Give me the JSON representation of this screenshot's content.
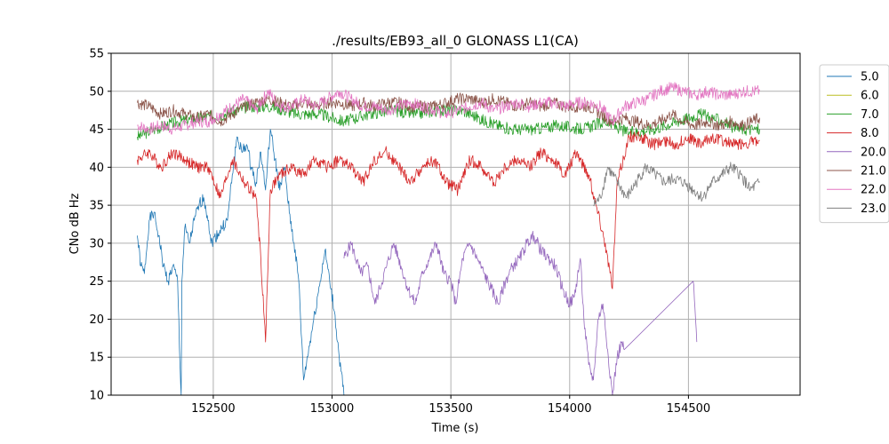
{
  "chart_data": {
    "type": "line",
    "title": "./results/EB93_all_0 GLONASS L1(CA)",
    "xlabel": "Time (s)",
    "ylabel": "CNo dB Hz",
    "xlim": [
      152070,
      154970
    ],
    "ylim": [
      10,
      55
    ],
    "xticks": [
      152500,
      153000,
      153500,
      154000,
      154500
    ],
    "yticks": [
      10,
      15,
      20,
      25,
      30,
      35,
      40,
      45,
      50,
      55
    ],
    "grid": true,
    "legend_position": "outside-right",
    "series": [
      {
        "name": "5.0",
        "color": "#1f77b4",
        "points": [
          [
            152180,
            31
          ],
          [
            152195,
            27
          ],
          [
            152210,
            26
          ],
          [
            152230,
            33
          ],
          [
            152250,
            34
          ],
          [
            152270,
            31
          ],
          [
            152290,
            27
          ],
          [
            152310,
            25
          ],
          [
            152330,
            27
          ],
          [
            152350,
            25
          ],
          [
            152360,
            14
          ],
          [
            152365,
            10
          ],
          [
            152368,
            25
          ],
          [
            152380,
            32
          ],
          [
            152400,
            30
          ],
          [
            152420,
            33
          ],
          [
            152440,
            35
          ],
          [
            152460,
            36
          ],
          [
            152480,
            33
          ],
          [
            152490,
            30
          ],
          [
            152560,
            33
          ],
          [
            152580,
            39
          ],
          [
            152600,
            44
          ],
          [
            152620,
            42
          ],
          [
            152640,
            43
          ],
          [
            152660,
            40
          ],
          [
            152680,
            38
          ],
          [
            152700,
            42
          ],
          [
            152720,
            37
          ],
          [
            152740,
            45
          ],
          [
            152760,
            41
          ],
          [
            152780,
            37
          ],
          [
            152800,
            40
          ],
          [
            152820,
            34
          ],
          [
            152840,
            30
          ],
          [
            152860,
            25
          ],
          [
            152880,
            12
          ],
          [
            152950,
            25
          ],
          [
            152970,
            29
          ],
          [
            152990,
            25
          ],
          [
            153010,
            21
          ],
          [
            153030,
            15
          ],
          [
            153050,
            10
          ]
        ]
      },
      {
        "name": "6.0",
        "color": "#bcbd22",
        "points": []
      },
      {
        "name": "7.0",
        "color": "#2ca02c",
        "points": [
          [
            152180,
            44
          ],
          [
            152250,
            45
          ],
          [
            152350,
            46
          ],
          [
            152450,
            46.5
          ],
          [
            152550,
            47
          ],
          [
            152650,
            48
          ],
          [
            152750,
            48
          ],
          [
            152850,
            47
          ],
          [
            152950,
            47
          ],
          [
            153050,
            46
          ],
          [
            153150,
            47
          ],
          [
            153250,
            47.5
          ],
          [
            153350,
            47
          ],
          [
            153450,
            47.5
          ],
          [
            153550,
            47.5
          ],
          [
            153650,
            46
          ],
          [
            153750,
            45
          ],
          [
            153850,
            45
          ],
          [
            153950,
            45.5
          ],
          [
            154050,
            45
          ],
          [
            154150,
            46
          ],
          [
            154250,
            44.5
          ],
          [
            154350,
            45
          ],
          [
            154450,
            46
          ],
          [
            154550,
            47
          ],
          [
            154650,
            46
          ],
          [
            154700,
            45
          ],
          [
            154800,
            45
          ]
        ]
      },
      {
        "name": "8.0",
        "color": "#d62728",
        "points": [
          [
            152180,
            41
          ],
          [
            152230,
            42
          ],
          [
            152280,
            40
          ],
          [
            152330,
            42
          ],
          [
            152380,
            41
          ],
          [
            152430,
            40
          ],
          [
            152480,
            40
          ],
          [
            152530,
            36
          ],
          [
            152580,
            41
          ],
          [
            152630,
            38
          ],
          [
            152680,
            36
          ],
          [
            152700,
            28
          ],
          [
            152720,
            17
          ],
          [
            152740,
            37
          ],
          [
            152780,
            39
          ],
          [
            152830,
            40
          ],
          [
            152880,
            39
          ],
          [
            152930,
            41
          ],
          [
            152980,
            40
          ],
          [
            153030,
            41
          ],
          [
            153080,
            40
          ],
          [
            153130,
            38
          ],
          [
            153180,
            41
          ],
          [
            153230,
            42
          ],
          [
            153280,
            40
          ],
          [
            153330,
            38
          ],
          [
            153380,
            40
          ],
          [
            153430,
            41
          ],
          [
            153480,
            38
          ],
          [
            153530,
            37
          ],
          [
            153580,
            41
          ],
          [
            153630,
            40
          ],
          [
            153680,
            38
          ],
          [
            153730,
            40
          ],
          [
            153780,
            41
          ],
          [
            153830,
            40
          ],
          [
            153880,
            42
          ],
          [
            153930,
            41
          ],
          [
            153980,
            39
          ],
          [
            154030,
            42
          ],
          [
            154080,
            39
          ],
          [
            154120,
            34
          ],
          [
            154150,
            30
          ],
          [
            154180,
            24
          ],
          [
            154200,
            38
          ],
          [
            154250,
            44
          ],
          [
            154300,
            44
          ],
          [
            154350,
            43
          ],
          [
            154400,
            43.5
          ],
          [
            154450,
            43
          ],
          [
            154500,
            44
          ],
          [
            154550,
            43
          ],
          [
            154600,
            44
          ],
          [
            154650,
            43.5
          ],
          [
            154700,
            43
          ],
          [
            154800,
            43.5
          ]
        ]
      },
      {
        "name": "20.0",
        "color": "#9467bd",
        "points": [
          [
            153050,
            28
          ],
          [
            153080,
            30
          ],
          [
            153120,
            26
          ],
          [
            153150,
            27
          ],
          [
            153180,
            22
          ],
          [
            153200,
            24
          ],
          [
            153230,
            27
          ],
          [
            153260,
            30
          ],
          [
            153290,
            27
          ],
          [
            153320,
            24
          ],
          [
            153350,
            22
          ],
          [
            153380,
            26
          ],
          [
            153410,
            28
          ],
          [
            153440,
            30
          ],
          [
            153470,
            26
          ],
          [
            153500,
            25
          ],
          [
            153520,
            22
          ],
          [
            153550,
            28
          ],
          [
            153580,
            30
          ],
          [
            153610,
            28
          ],
          [
            153640,
            26
          ],
          [
            153670,
            24
          ],
          [
            153700,
            22
          ],
          [
            153730,
            25
          ],
          [
            153760,
            27
          ],
          [
            153790,
            28
          ],
          [
            153820,
            30
          ],
          [
            153850,
            31
          ],
          [
            153880,
            29
          ],
          [
            153910,
            28
          ],
          [
            153940,
            27
          ],
          [
            153970,
            24
          ],
          [
            154000,
            22
          ],
          [
            154020,
            23
          ],
          [
            154045,
            28
          ],
          [
            154060,
            20
          ],
          [
            154080,
            14
          ],
          [
            154100,
            12
          ],
          [
            154120,
            20
          ],
          [
            154140,
            22
          ],
          [
            154160,
            16
          ],
          [
            154180,
            10
          ],
          [
            154200,
            15
          ],
          [
            154220,
            17
          ],
          [
            154230,
            16
          ],
          [
            154520,
            25
          ],
          [
            154530,
            20
          ],
          [
            154535,
            17
          ]
        ]
      },
      {
        "name": "21.0",
        "color": "#8c564b",
        "points": [
          [
            152180,
            48.5
          ],
          [
            152230,
            48
          ],
          [
            152280,
            47
          ],
          [
            152330,
            47.5
          ],
          [
            152380,
            47
          ],
          [
            152430,
            46.5
          ],
          [
            152480,
            47
          ],
          [
            152530,
            46
          ],
          [
            152580,
            47
          ],
          [
            152630,
            48
          ],
          [
            152680,
            48.5
          ],
          [
            152730,
            49
          ],
          [
            152780,
            48.5
          ],
          [
            152830,
            48
          ],
          [
            152880,
            48.5
          ],
          [
            152930,
            48
          ],
          [
            152980,
            48.5
          ],
          [
            153030,
            48.5
          ],
          [
            153080,
            48
          ],
          [
            153130,
            48.5
          ],
          [
            153180,
            48
          ],
          [
            153230,
            48.5
          ],
          [
            153280,
            48.5
          ],
          [
            153330,
            48
          ],
          [
            153380,
            48
          ],
          [
            153430,
            48
          ],
          [
            153480,
            48.5
          ],
          [
            153530,
            49
          ],
          [
            153580,
            49
          ],
          [
            153630,
            48.5
          ],
          [
            153680,
            49
          ],
          [
            153730,
            48.5
          ],
          [
            153780,
            48
          ],
          [
            153830,
            48.5
          ],
          [
            153880,
            48
          ],
          [
            153930,
            48.5
          ],
          [
            153980,
            48
          ],
          [
            154030,
            48
          ],
          [
            154080,
            48
          ],
          [
            154130,
            47
          ],
          [
            154180,
            46
          ],
          [
            154230,
            46.5
          ],
          [
            154280,
            46
          ],
          [
            154330,
            45.5
          ],
          [
            154380,
            46
          ],
          [
            154430,
            47
          ],
          [
            154480,
            46
          ],
          [
            154530,
            45.5
          ],
          [
            154580,
            46
          ],
          [
            154630,
            45.5
          ],
          [
            154680,
            46
          ],
          [
            154730,
            45.5
          ],
          [
            154800,
            46.5
          ]
        ]
      },
      {
        "name": "22.0",
        "color": "#e377c2",
        "points": [
          [
            152180,
            45.5
          ],
          [
            152230,
            45
          ],
          [
            152280,
            45.5
          ],
          [
            152330,
            45
          ],
          [
            152380,
            45.5
          ],
          [
            152430,
            46
          ],
          [
            152480,
            46
          ],
          [
            152530,
            47
          ],
          [
            152580,
            48
          ],
          [
            152630,
            49
          ],
          [
            152680,
            47.5
          ],
          [
            152730,
            50
          ],
          [
            152780,
            48
          ],
          [
            152830,
            48
          ],
          [
            152880,
            49
          ],
          [
            152930,
            48
          ],
          [
            152980,
            49
          ],
          [
            153030,
            50
          ],
          [
            153080,
            49
          ],
          [
            153130,
            48
          ],
          [
            153180,
            48
          ],
          [
            153230,
            47.5
          ],
          [
            153280,
            48
          ],
          [
            153330,
            48.5
          ],
          [
            153380,
            48
          ],
          [
            153430,
            47.5
          ],
          [
            153480,
            47
          ],
          [
            153530,
            47.5
          ],
          [
            153580,
            48
          ],
          [
            153630,
            48.5
          ],
          [
            153680,
            47.5
          ],
          [
            153730,
            48
          ],
          [
            153780,
            48.5
          ],
          [
            153830,
            48
          ],
          [
            153880,
            48.5
          ],
          [
            153930,
            48.5
          ],
          [
            153980,
            48
          ],
          [
            154030,
            48.5
          ],
          [
            154080,
            48.5
          ],
          [
            154130,
            48
          ],
          [
            154180,
            46
          ],
          [
            154230,
            48
          ],
          [
            154280,
            48.5
          ],
          [
            154330,
            49
          ],
          [
            154380,
            50
          ],
          [
            154430,
            50.5
          ],
          [
            154480,
            50
          ],
          [
            154530,
            49.5
          ],
          [
            154580,
            50
          ],
          [
            154630,
            49.5
          ],
          [
            154680,
            49.5
          ],
          [
            154730,
            50
          ],
          [
            154800,
            50
          ]
        ]
      },
      {
        "name": "23.0",
        "color": "#7f7f7f",
        "points": [
          [
            154100,
            35
          ],
          [
            154130,
            36
          ],
          [
            154160,
            40
          ],
          [
            154200,
            38
          ],
          [
            154240,
            36
          ],
          [
            154280,
            38
          ],
          [
            154320,
            40
          ],
          [
            154360,
            39
          ],
          [
            154400,
            38
          ],
          [
            154440,
            38.5
          ],
          [
            154480,
            38
          ],
          [
            154520,
            37
          ],
          [
            154560,
            36
          ],
          [
            154600,
            38
          ],
          [
            154640,
            39
          ],
          [
            154680,
            40
          ],
          [
            154720,
            39
          ],
          [
            154760,
            37
          ],
          [
            154800,
            38
          ]
        ]
      }
    ]
  }
}
